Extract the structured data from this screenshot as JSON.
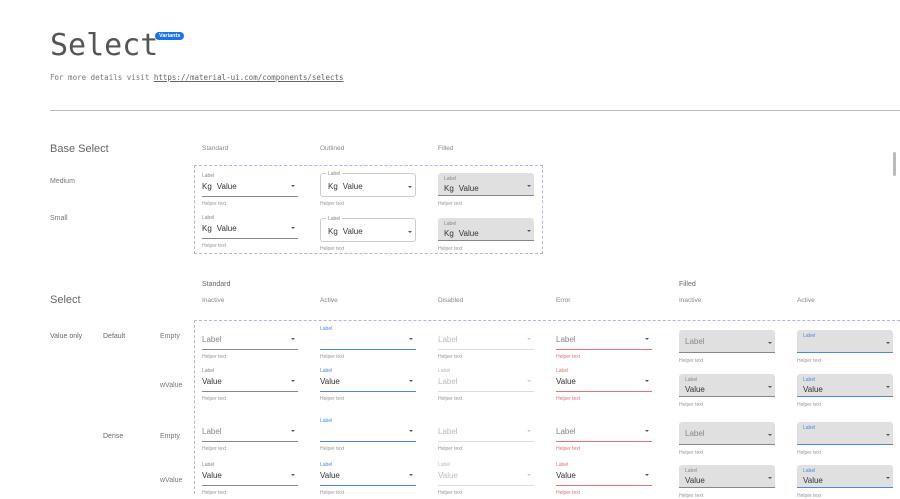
{
  "header": {
    "title": "Select",
    "badge": "Variants",
    "subtitle_prefix": "For more details visit ",
    "link": "https://material-ui.com/components/selects"
  },
  "colors": {
    "accent": "#1a73e8",
    "active": "#4a8be0",
    "error": "#e57373",
    "filled_bg": "#e0e0e0",
    "dash": "#b6b0ee"
  },
  "base": {
    "title": "Base Select",
    "columns": [
      "Standard",
      "Outlined",
      "Filled"
    ],
    "rows": [
      {
        "name": "Medium",
        "cells": [
          {
            "variant": "standard",
            "state": "inactive",
            "label": "Label",
            "prefix": "Kg",
            "value": "Value",
            "helper": "Helper text"
          },
          {
            "variant": "outlined",
            "state": "inactive",
            "label": "Label",
            "prefix": "Kg",
            "value": "Value",
            "helper": "Helper text"
          },
          {
            "variant": "filled",
            "state": "inactive",
            "label": "Label",
            "prefix": "Kg",
            "value": "Value",
            "helper": "Helper text"
          }
        ]
      },
      {
        "name": "Small",
        "cells": [
          {
            "variant": "standard",
            "state": "inactive",
            "label": "Label",
            "prefix": "Kg",
            "value": "Value",
            "helper": "Helper text"
          },
          {
            "variant": "outlined",
            "state": "inactive",
            "label": "Label",
            "prefix": "Kg",
            "value": "Value",
            "helper": "Helper text"
          },
          {
            "variant": "filled",
            "state": "inactive",
            "label": "Label",
            "prefix": "Kg",
            "value": "Value",
            "helper": "Helper text"
          }
        ]
      }
    ]
  },
  "select": {
    "title": "Select",
    "groups": [
      "Standard",
      "Filled"
    ],
    "columns": [
      "Inactive",
      "Active",
      "Disabled",
      "Error",
      "Inactive",
      "Active"
    ],
    "category": "Value only",
    "sizes": [
      "Default",
      "Dense"
    ],
    "rows": [
      {
        "size": "Default",
        "name": "Empty",
        "cells": [
          {
            "variant": "standard",
            "state": "inactive",
            "label": "Label",
            "value": "",
            "helper": "Helper text"
          },
          {
            "variant": "standard",
            "state": "active",
            "label": "Label",
            "value": "",
            "helper": "Helper text"
          },
          {
            "variant": "standard",
            "state": "disabled",
            "label": "Label",
            "value": "",
            "helper": "Helper text"
          },
          {
            "variant": "standard",
            "state": "error",
            "label": "Label",
            "value": "",
            "helper": "Helper text"
          },
          {
            "variant": "filled",
            "state": "inactive",
            "label": "Label",
            "value": "",
            "helper": "Helper text"
          },
          {
            "variant": "filled",
            "state": "active",
            "label": "Label",
            "value": "",
            "helper": "Helper text"
          }
        ]
      },
      {
        "size": "Default",
        "name": "wValue",
        "cells": [
          {
            "variant": "standard",
            "state": "inactive",
            "label": "Label",
            "value": "Value",
            "helper": "Helper text"
          },
          {
            "variant": "standard",
            "state": "active",
            "label": "Label",
            "value": "Value",
            "helper": "Helper text"
          },
          {
            "variant": "standard",
            "state": "disabled",
            "label": "Label",
            "value": "Label",
            "helper": "Helper text"
          },
          {
            "variant": "standard",
            "state": "error",
            "label": "Label",
            "value": "Value",
            "helper": "Helper text"
          },
          {
            "variant": "filled",
            "state": "inactive",
            "label": "Label",
            "value": "Value",
            "helper": "Helper text"
          },
          {
            "variant": "filled",
            "state": "active",
            "label": "Label",
            "value": "Value",
            "helper": "Helper text"
          }
        ]
      },
      {
        "size": "Dense",
        "name": "Empty",
        "cells": [
          {
            "variant": "standard",
            "state": "inactive",
            "label": "Label",
            "value": "",
            "helper": "Helper text"
          },
          {
            "variant": "standard",
            "state": "active",
            "label": "Label",
            "value": "",
            "helper": "Helper text"
          },
          {
            "variant": "standard",
            "state": "disabled",
            "label": "Label",
            "value": "",
            "helper": "Helper text"
          },
          {
            "variant": "standard",
            "state": "error",
            "label": "Label",
            "value": "",
            "helper": "Helper text"
          },
          {
            "variant": "filled",
            "state": "inactive",
            "label": "Label",
            "value": "",
            "helper": "Helper text"
          },
          {
            "variant": "filled",
            "state": "active",
            "label": "Label",
            "value": "",
            "helper": "Helper text"
          }
        ]
      },
      {
        "size": "Dense",
        "name": "wValue",
        "cells": [
          {
            "variant": "standard",
            "state": "inactive",
            "label": "Label",
            "value": "Value",
            "helper": "Helper text"
          },
          {
            "variant": "standard",
            "state": "active",
            "label": "Label",
            "value": "Value",
            "helper": "Helper text"
          },
          {
            "variant": "standard",
            "state": "disabled",
            "label": "Label",
            "value": "Value",
            "helper": "Helper text"
          },
          {
            "variant": "standard",
            "state": "error",
            "label": "Label",
            "value": "Value",
            "helper": "Helper text"
          },
          {
            "variant": "filled",
            "state": "inactive",
            "label": "Label",
            "value": "Value",
            "helper": "Helper text"
          },
          {
            "variant": "filled",
            "state": "active",
            "label": "Label",
            "value": "Value",
            "helper": "Helper text"
          }
        ]
      }
    ]
  }
}
